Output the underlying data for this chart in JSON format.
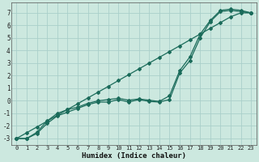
{
  "xlabel": "Humidex (Indice chaleur)",
  "ylabel": "",
  "bg_color": "#cce8df",
  "grid_color": "#aacfca",
  "line_color": "#1a6b5a",
  "xlim": [
    -0.5,
    23.5
  ],
  "ylim": [
    -3.5,
    7.8
  ],
  "xticks": [
    0,
    1,
    2,
    3,
    4,
    5,
    6,
    7,
    8,
    9,
    10,
    11,
    12,
    13,
    14,
    15,
    16,
    17,
    18,
    19,
    20,
    21,
    22,
    23
  ],
  "yticks": [
    -3,
    -2,
    -1,
    0,
    1,
    2,
    3,
    4,
    5,
    6,
    7
  ],
  "line1": [
    -3.0,
    -3.0,
    -2.6,
    -1.8,
    -1.2,
    -0.9,
    -0.6,
    -0.3,
    -0.1,
    -0.1,
    0.1,
    -0.1,
    0.1,
    -0.05,
    -0.1,
    0.1,
    2.2,
    3.2,
    5.0,
    6.3,
    7.1,
    7.2,
    7.1,
    7.0
  ],
  "line2": [
    -3.0,
    -3.0,
    -2.5,
    -1.6,
    -1.0,
    -0.7,
    -0.5,
    -0.2,
    0.0,
    0.1,
    0.2,
    0.05,
    0.15,
    0.05,
    -0.05,
    0.4,
    2.4,
    3.5,
    5.3,
    6.4,
    7.2,
    7.3,
    7.2,
    7.0
  ],
  "line3_linear": [
    -3.0,
    -2.54,
    -2.08,
    -1.62,
    -1.15,
    -0.69,
    -0.23,
    0.23,
    0.69,
    1.15,
    1.62,
    2.08,
    2.54,
    3.0,
    3.46,
    3.92,
    4.38,
    4.85,
    5.31,
    5.77,
    6.23,
    6.69,
    7.0,
    7.0
  ]
}
